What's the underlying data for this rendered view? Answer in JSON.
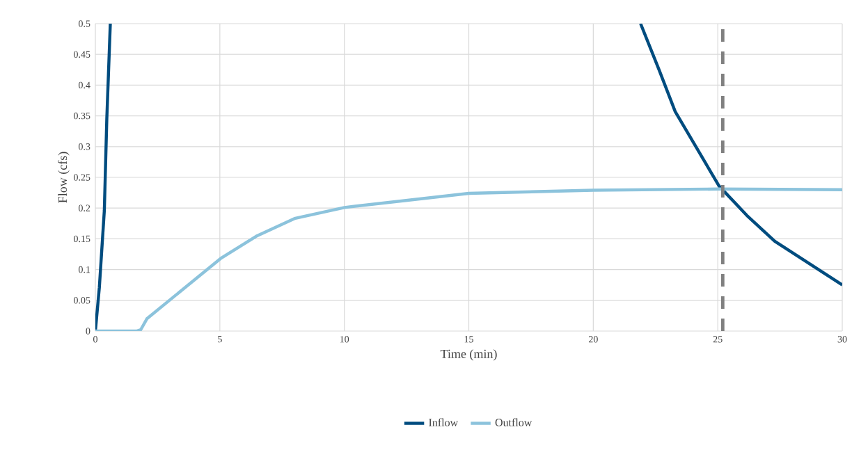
{
  "chart_data": {
    "type": "line",
    "xlabel": "Time (min)",
    "ylabel": "Flow (cfs)",
    "xlim": [
      0,
      30
    ],
    "ylim": [
      0,
      0.5
    ],
    "xticks": [
      0,
      5,
      10,
      15,
      20,
      25,
      30
    ],
    "yticks": [
      0,
      0.05,
      0.1,
      0.15,
      0.2,
      0.25,
      0.3,
      0.35,
      0.4,
      0.45,
      0.5
    ],
    "grid": true,
    "legend": "bottom",
    "marker": "none",
    "line_style": "solid",
    "ref_lines": [
      {
        "axis": "x",
        "value": 25.2,
        "color": "#808080",
        "line_style": "dashed"
      }
    ],
    "series": [
      {
        "name": "Inflow",
        "color": "#004c7f",
        "x": [
          0,
          0.16,
          0.36,
          0.46,
          0.6,
          11,
          21.9,
          22.65,
          23.29,
          25.05,
          26.17,
          27.29,
          30
        ],
        "values": [
          0,
          0.071,
          0.196,
          0.346,
          0.5,
          null,
          0.5,
          0.424,
          0.357,
          0.236,
          0.188,
          0.146,
          0.075
        ]
      },
      {
        "name": "Outflow",
        "color": "#8cc3dc",
        "x": [
          0,
          1.65,
          1.82,
          2.07,
          5.03,
          6.5,
          8,
          10,
          15,
          20,
          25,
          30
        ],
        "values": [
          0,
          0,
          0.002,
          0.02,
          0.118,
          0.155,
          0.183,
          0.201,
          0.224,
          0.229,
          0.231,
          0.23
        ]
      }
    ]
  }
}
